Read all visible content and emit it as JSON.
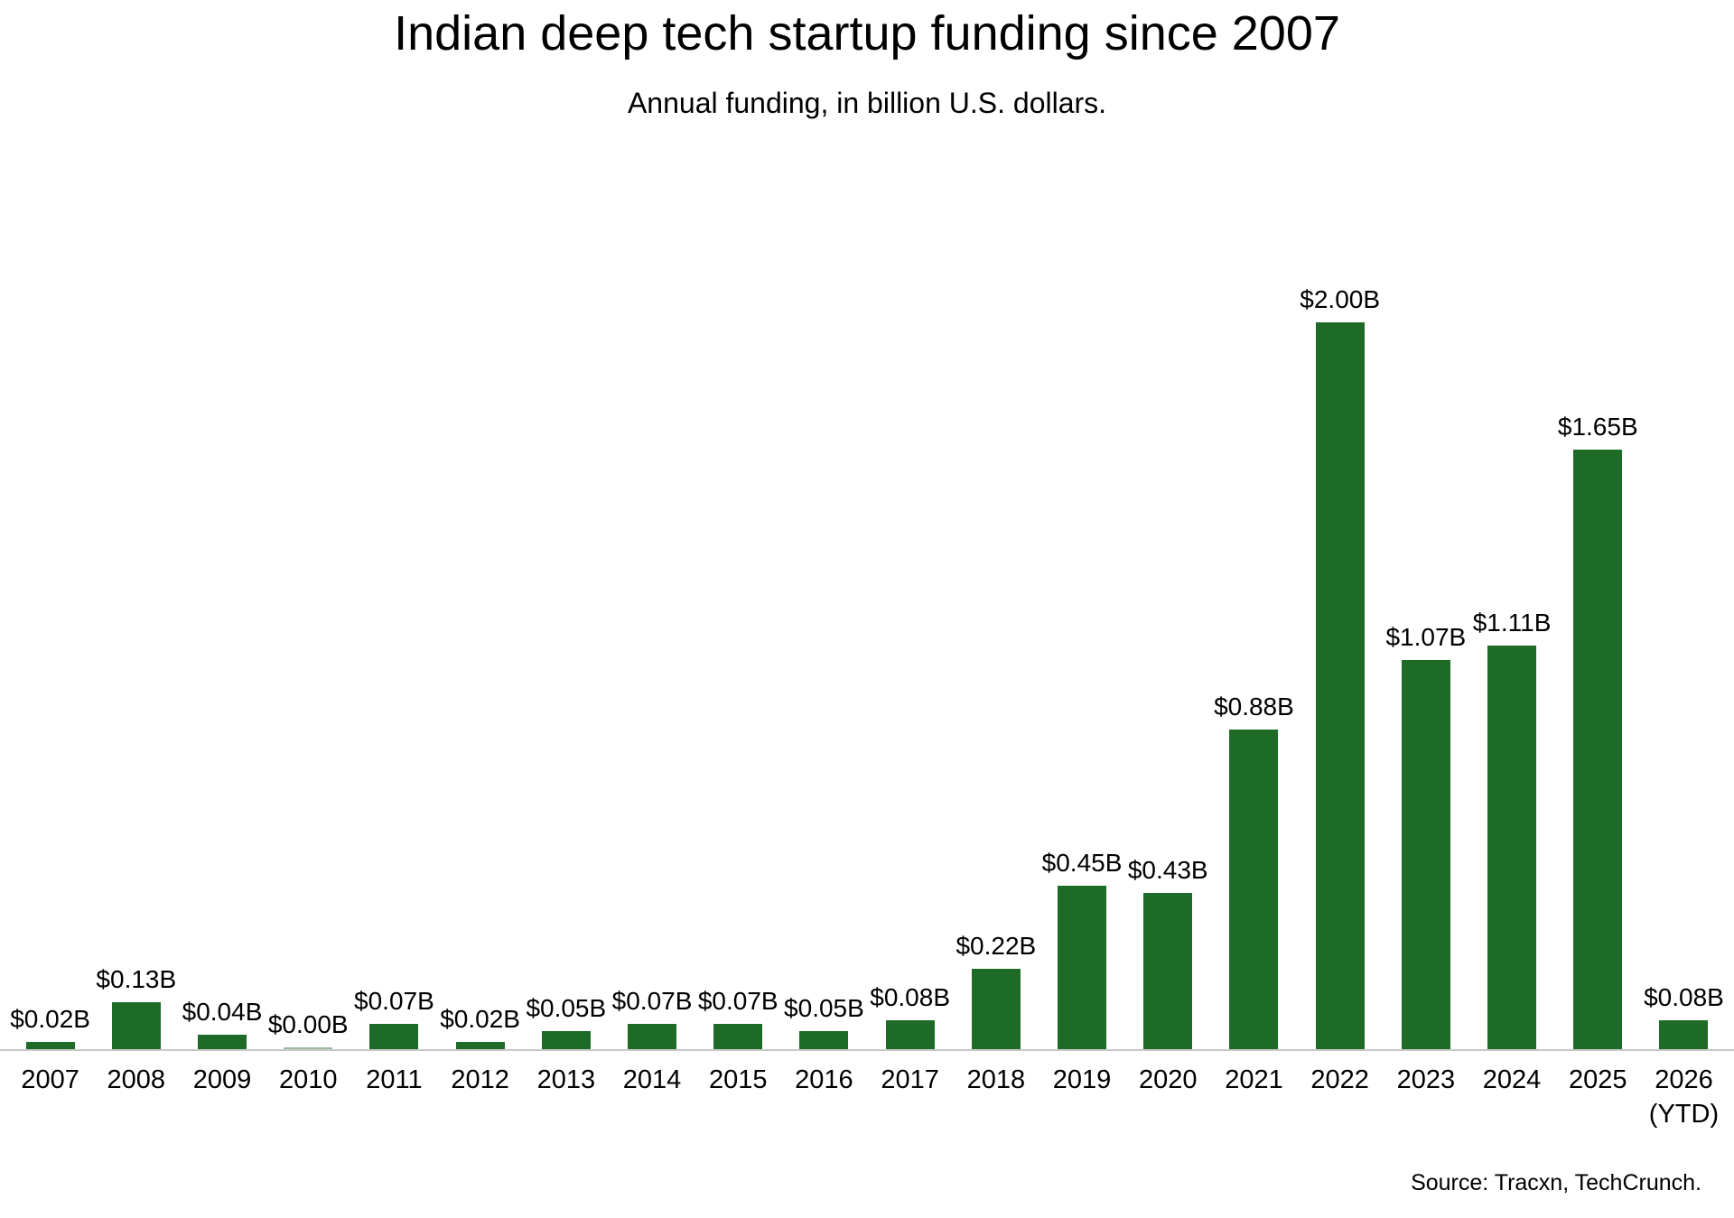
{
  "chart_data": {
    "type": "bar",
    "title": "Indian deep tech startup funding since 2007",
    "subtitle": "Annual funding, in billion U.S. dollars.",
    "categories": [
      "2007",
      "2008",
      "2009",
      "2010",
      "2011",
      "2012",
      "2013",
      "2014",
      "2015",
      "2016",
      "2017",
      "2018",
      "2019",
      "2020",
      "2021",
      "2022",
      "2023",
      "2024",
      "2025",
      "2026\n(YTD)"
    ],
    "values": [
      0.02,
      0.13,
      0.04,
      0.0,
      0.07,
      0.02,
      0.05,
      0.07,
      0.07,
      0.05,
      0.08,
      0.22,
      0.45,
      0.43,
      0.88,
      2.0,
      1.07,
      1.11,
      1.65,
      0.08
    ],
    "labels": [
      "$0.02B",
      "$0.13B",
      "$0.04B",
      "$0.00B",
      "$0.07B",
      "$0.02B",
      "$0.05B",
      "$0.07B",
      "$0.07B",
      "$0.05B",
      "$0.08B",
      "$0.22B",
      "$0.45B",
      "$0.43B",
      "$0.88B",
      "$2.00B",
      "$1.07B",
      "$1.11B",
      "$1.65B",
      "$0.08B"
    ],
    "xlabel": "",
    "ylabel": "",
    "ylim": [
      0,
      2.0
    ],
    "grid": false,
    "legend": false,
    "bar_color": "#1e6b28",
    "axis_line_color": "#c8c8c8",
    "source": "Source: Tracxn, TechCrunch."
  }
}
